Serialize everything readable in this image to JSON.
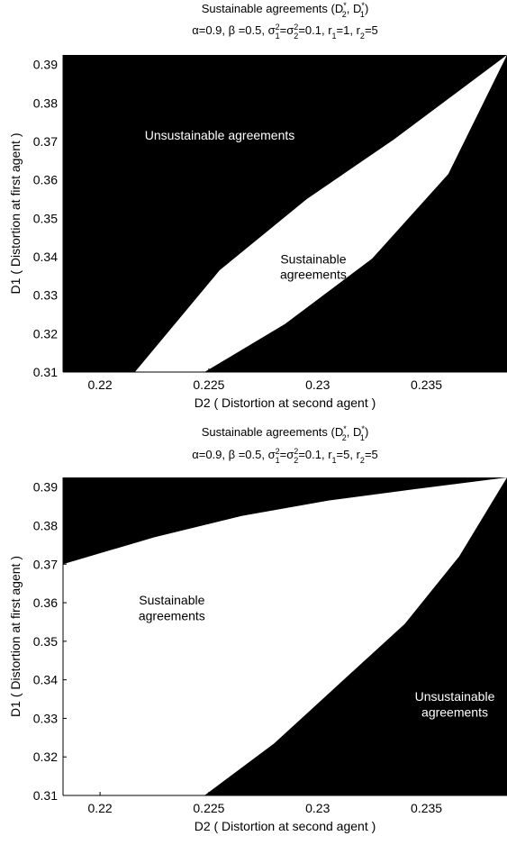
{
  "chart_data": [
    {
      "type": "area",
      "title": "Sustainable agreements (D",
      "title_parts": [
        "Sustainable agreements (D",
        "*",
        "2",
        ", D",
        "*",
        "1",
        ")"
      ],
      "subtitle_parts": [
        "α=0.9, β =0.5, σ",
        "2",
        "1",
        "=σ",
        "2",
        "2",
        "=0.1, r",
        "1",
        "=1, r",
        "2",
        "=5"
      ],
      "xlabel": "D2 ( Distortion at second agent )",
      "ylabel": "D1 ( Distortion at first agent )",
      "xlim": [
        0.2183,
        0.2387
      ],
      "ylim": [
        0.31,
        0.3925
      ],
      "xticks": [
        "0.22",
        "0.225",
        "0.23",
        "0.235"
      ],
      "xtick_values": [
        0.22,
        0.225,
        0.23,
        0.235
      ],
      "yticks": [
        "0.31",
        "0.32",
        "0.33",
        "0.34",
        "0.35",
        "0.36",
        "0.37",
        "0.38",
        "0.39"
      ],
      "ytick_values": [
        0.31,
        0.32,
        0.33,
        0.34,
        0.35,
        0.36,
        0.37,
        0.38,
        0.39
      ],
      "colors": {
        "unsustainable": "#000000",
        "sustainable": "#ffffff"
      },
      "sustainable_region": {
        "upper_boundary": {
          "x": [
            0.2216,
            0.2255,
            0.2295,
            0.2335,
            0.2387
          ],
          "y": [
            0.31,
            0.3365,
            0.355,
            0.3705,
            0.3925
          ]
        },
        "lower_boundary": {
          "x": [
            0.2248,
            0.2285,
            0.2325,
            0.236,
            0.2387
          ],
          "y": [
            0.31,
            0.3225,
            0.3395,
            0.3615,
            0.3925
          ]
        }
      },
      "annotations": [
        {
          "text": "Unsustainable agreements",
          "x": 0.2255,
          "y": 0.3705
        },
        {
          "text": "Sustainable",
          "x": 0.2298,
          "y": 0.3382
        },
        {
          "text": "agreements",
          "x": 0.2298,
          "y": 0.3342
        }
      ]
    },
    {
      "type": "area",
      "title": "Sustainable agreements (D",
      "title_parts": [
        "Sustainable agreements (D",
        "*",
        "2",
        ", D",
        "*",
        "1",
        ")"
      ],
      "subtitle_parts": [
        "α=0.9, β =0.5, σ",
        "2",
        "1",
        "=σ",
        "2",
        "2",
        "=0.1, r",
        "1",
        "=5, r",
        "2",
        "=5"
      ],
      "xlabel": "D2 ( Distortion at second agent )",
      "ylabel": "D1 ( Distortion at first agent )",
      "xlim": [
        0.2183,
        0.2387
      ],
      "ylim": [
        0.31,
        0.3925
      ],
      "xticks": [
        "0.22",
        "0.225",
        "0.23",
        "0.235"
      ],
      "xtick_values": [
        0.22,
        0.225,
        0.23,
        0.235
      ],
      "yticks": [
        "0.31",
        "0.32",
        "0.33",
        "0.34",
        "0.35",
        "0.36",
        "0.37",
        "0.38",
        "0.39"
      ],
      "ytick_values": [
        0.31,
        0.32,
        0.33,
        0.34,
        0.35,
        0.36,
        0.37,
        0.38,
        0.39
      ],
      "colors": {
        "unsustainable": "#000000",
        "sustainable": "#ffffff"
      },
      "sustainable_region": {
        "upper_boundary": {
          "x": [
            0.2183,
            0.2225,
            0.2265,
            0.2305,
            0.2345,
            0.2387
          ],
          "y": [
            0.37,
            0.377,
            0.3825,
            0.3865,
            0.3895,
            0.3925
          ]
        },
        "lower_boundary": {
          "x": [
            0.2248,
            0.228,
            0.231,
            0.234,
            0.2365,
            0.2387
          ],
          "y": [
            0.31,
            0.3235,
            0.339,
            0.3545,
            0.372,
            0.3925
          ]
        }
      },
      "annotations": [
        {
          "text": "Sustainable",
          "x": 0.2233,
          "y": 0.3595
        },
        {
          "text": "agreements",
          "x": 0.2233,
          "y": 0.3555
        },
        {
          "text": "Unsustainable",
          "x": 0.2363,
          "y": 0.3345
        },
        {
          "text": "agreements",
          "x": 0.2363,
          "y": 0.3305
        }
      ]
    }
  ]
}
